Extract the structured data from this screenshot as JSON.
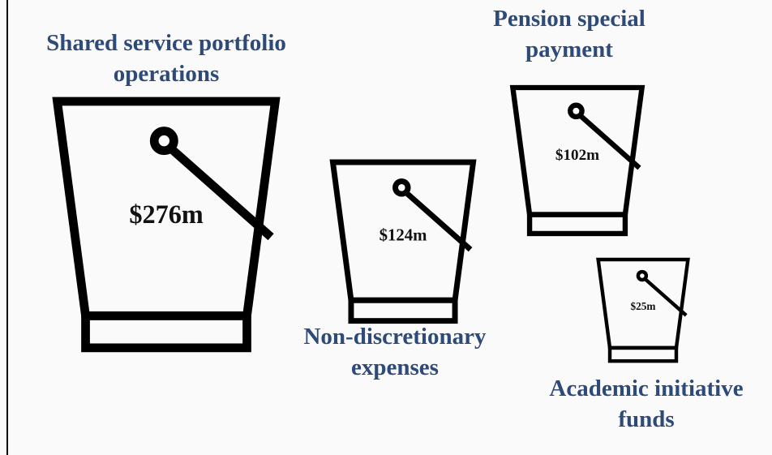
{
  "chart_data": {
    "type": "bucket",
    "categories": [
      "Shared service portfolio operations",
      "Non-discretionary expenses",
      "Pension special payment",
      "Academic initiative funds"
    ],
    "values": [
      276,
      124,
      102,
      25
    ],
    "value_labels": [
      "$276m",
      "$124m",
      "$102m",
      "$25m"
    ],
    "color": "#000000"
  }
}
